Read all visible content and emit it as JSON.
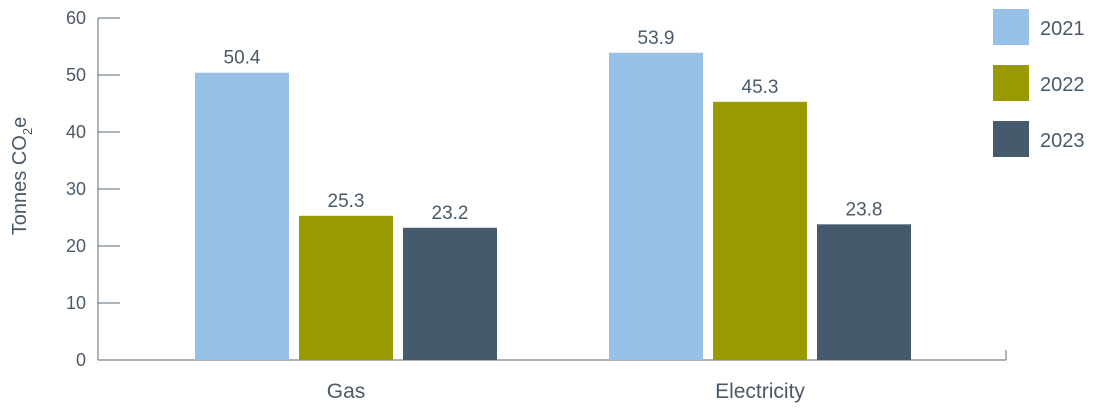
{
  "chart_data": {
    "type": "bar",
    "categories": [
      "Gas",
      "Electricity"
    ],
    "series": [
      {
        "name": "2021",
        "values": [
          50.4,
          53.9
        ],
        "color": "#97c1e7"
      },
      {
        "name": "2022",
        "values": [
          25.3,
          45.3
        ],
        "color": "#999a00"
      },
      {
        "name": "2023",
        "values": [
          23.2,
          23.8
        ],
        "color": "#465a6d"
      }
    ],
    "ylabel": "Tonnes CO",
    "ylabel_subscript": "2",
    "ylabel_suffix": "e",
    "xlabel": "",
    "ylim": [
      0,
      60
    ],
    "yticks": [
      "0",
      "10",
      "20",
      "30",
      "40",
      "50",
      "60"
    ],
    "data_labels": [
      [
        "50.4",
        "53.9"
      ],
      [
        "25.3",
        "45.3"
      ],
      [
        "23.2",
        "23.8"
      ]
    ],
    "legend_position": "right",
    "grid": false
  }
}
